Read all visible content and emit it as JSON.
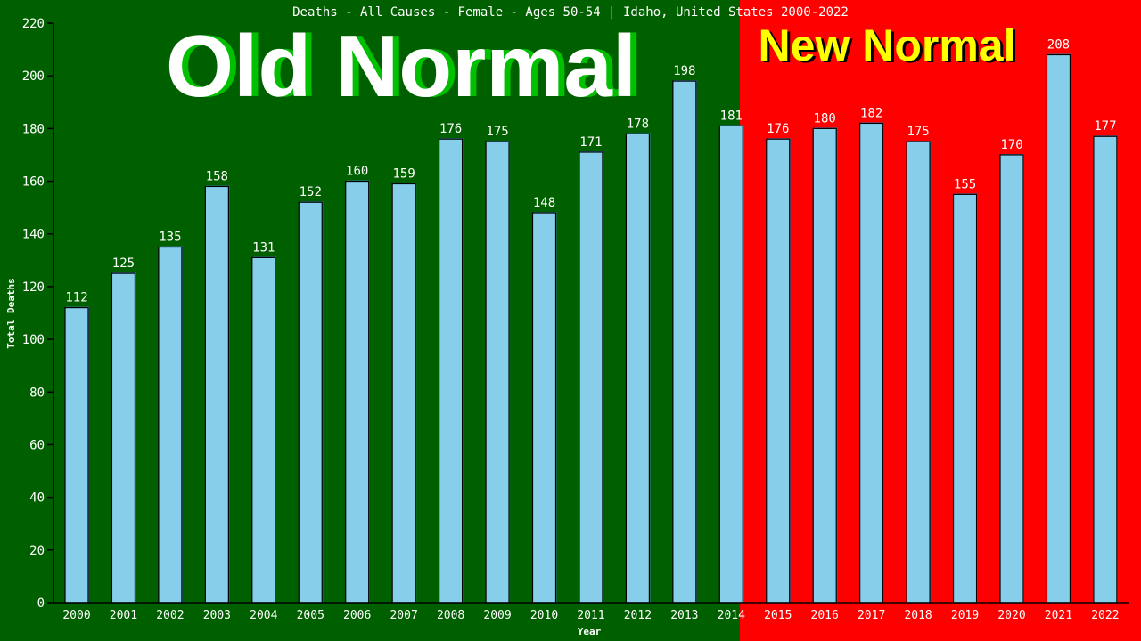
{
  "chart_data": {
    "type": "bar",
    "title": "Deaths - All Causes - Female - Ages 50-54 | Idaho, United States 2000-2022",
    "xlabel": "Year",
    "ylabel": "Total Deaths",
    "ylim": [
      0,
      220
    ],
    "yticks": [
      0,
      20,
      40,
      60,
      80,
      100,
      120,
      140,
      160,
      180,
      200,
      220
    ],
    "categories": [
      "2000",
      "2001",
      "2002",
      "2003",
      "2004",
      "2005",
      "2006",
      "2007",
      "2008",
      "2009",
      "2010",
      "2011",
      "2012",
      "2013",
      "2014",
      "2015",
      "2016",
      "2017",
      "2018",
      "2019",
      "2020",
      "2021",
      "2022"
    ],
    "values": [
      112,
      125,
      135,
      158,
      131,
      152,
      160,
      159,
      176,
      175,
      148,
      171,
      178,
      198,
      181,
      176,
      180,
      182,
      175,
      155,
      170,
      208,
      177
    ],
    "grid": false,
    "bar_color": "#87ceeb",
    "regions": [
      {
        "label": "Old Normal",
        "color": "#006000",
        "text_color": "#ffffff",
        "shadow_color": "#00c000"
      },
      {
        "label": "New Normal",
        "color": "#ff0000",
        "text_color": "#ffff00",
        "shadow_color": "#000000"
      }
    ]
  }
}
